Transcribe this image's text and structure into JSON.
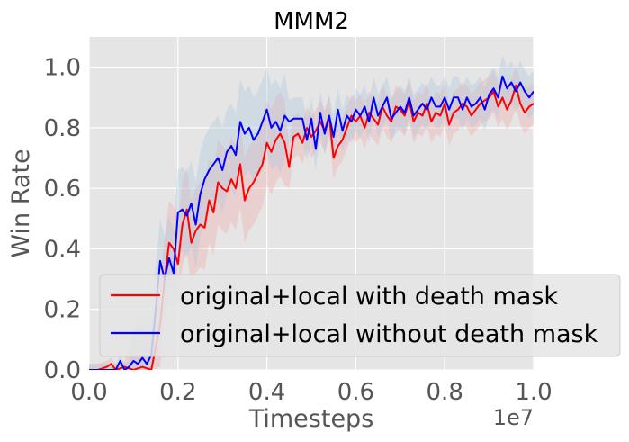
{
  "chart_data": {
    "type": "line",
    "title": "MMM2",
    "xlabel": "Timesteps",
    "ylabel": "Win Rate",
    "x_offset_label": "1e7",
    "xlim": [
      0.0,
      1.0
    ],
    "ylim": [
      0.0,
      1.1
    ],
    "xticks": [
      "0.0",
      "0.2",
      "0.4",
      "0.6",
      "0.8",
      "1.0"
    ],
    "yticks": [
      "0.0",
      "0.2",
      "0.4",
      "0.6",
      "0.8",
      "1.0"
    ],
    "grid": true,
    "legend_position": "lower-right",
    "series": [
      {
        "name": "original+local with death mask",
        "color": "#ff0000",
        "band_color": "#f4a6a6",
        "x": [
          0.0,
          0.02,
          0.04,
          0.05,
          0.06,
          0.08,
          0.1,
          0.12,
          0.14,
          0.16,
          0.17,
          0.18,
          0.19,
          0.2,
          0.21,
          0.22,
          0.23,
          0.24,
          0.25,
          0.26,
          0.27,
          0.28,
          0.29,
          0.3,
          0.31,
          0.32,
          0.33,
          0.34,
          0.35,
          0.36,
          0.37,
          0.38,
          0.39,
          0.4,
          0.41,
          0.42,
          0.43,
          0.44,
          0.45,
          0.46,
          0.47,
          0.48,
          0.49,
          0.5,
          0.51,
          0.52,
          0.53,
          0.54,
          0.55,
          0.56,
          0.57,
          0.58,
          0.59,
          0.6,
          0.61,
          0.62,
          0.63,
          0.64,
          0.65,
          0.66,
          0.67,
          0.68,
          0.69,
          0.7,
          0.71,
          0.72,
          0.73,
          0.74,
          0.75,
          0.76,
          0.77,
          0.78,
          0.79,
          0.8,
          0.81,
          0.82,
          0.83,
          0.84,
          0.85,
          0.86,
          0.87,
          0.88,
          0.89,
          0.9,
          0.91,
          0.92,
          0.93,
          0.94,
          0.95,
          0.96,
          0.97,
          0.98,
          0.99,
          1.0
        ],
        "y": [
          0.0,
          0.0,
          0.01,
          0.02,
          0.0,
          0.01,
          0.0,
          0.01,
          0.0,
          0.15,
          0.3,
          0.42,
          0.4,
          0.35,
          0.48,
          0.53,
          0.42,
          0.46,
          0.48,
          0.47,
          0.56,
          0.52,
          0.62,
          0.6,
          0.59,
          0.63,
          0.6,
          0.68,
          0.56,
          0.6,
          0.62,
          0.65,
          0.68,
          0.75,
          0.72,
          0.76,
          0.78,
          0.75,
          0.67,
          0.77,
          0.78,
          0.75,
          0.8,
          0.77,
          0.79,
          0.82,
          0.79,
          0.84,
          0.7,
          0.74,
          0.76,
          0.8,
          0.84,
          0.82,
          0.84,
          0.8,
          0.85,
          0.83,
          0.81,
          0.87,
          0.84,
          0.82,
          0.87,
          0.86,
          0.84,
          0.89,
          0.82,
          0.85,
          0.84,
          0.88,
          0.82,
          0.85,
          0.84,
          0.88,
          0.81,
          0.85,
          0.86,
          0.88,
          0.87,
          0.84,
          0.86,
          0.88,
          0.89,
          0.9,
          0.92,
          0.87,
          0.9,
          0.86,
          0.89,
          0.94,
          0.88,
          0.85,
          0.87,
          0.88
        ]
      },
      {
        "name": "original+local without death mask",
        "color": "#0000ff",
        "band_color": "#a9c6e0",
        "x": [
          0.0,
          0.02,
          0.04,
          0.06,
          0.07,
          0.08,
          0.09,
          0.1,
          0.11,
          0.12,
          0.13,
          0.14,
          0.15,
          0.16,
          0.17,
          0.18,
          0.19,
          0.2,
          0.21,
          0.22,
          0.23,
          0.24,
          0.25,
          0.26,
          0.27,
          0.28,
          0.29,
          0.3,
          0.31,
          0.32,
          0.33,
          0.34,
          0.35,
          0.36,
          0.37,
          0.38,
          0.39,
          0.4,
          0.41,
          0.42,
          0.43,
          0.44,
          0.45,
          0.46,
          0.47,
          0.48,
          0.49,
          0.5,
          0.51,
          0.52,
          0.53,
          0.54,
          0.55,
          0.56,
          0.57,
          0.58,
          0.59,
          0.6,
          0.61,
          0.62,
          0.63,
          0.64,
          0.65,
          0.66,
          0.67,
          0.68,
          0.69,
          0.7,
          0.71,
          0.72,
          0.73,
          0.74,
          0.75,
          0.76,
          0.77,
          0.78,
          0.79,
          0.8,
          0.81,
          0.82,
          0.83,
          0.84,
          0.85,
          0.86,
          0.87,
          0.88,
          0.89,
          0.9,
          0.91,
          0.92,
          0.93,
          0.94,
          0.95,
          0.96,
          0.97,
          0.98,
          0.99,
          1.0
        ],
        "y": [
          0.0,
          0.0,
          0.0,
          0.0,
          0.03,
          0.0,
          0.01,
          0.03,
          0.02,
          0.04,
          0.02,
          0.05,
          0.2,
          0.36,
          0.3,
          0.37,
          0.32,
          0.52,
          0.53,
          0.51,
          0.55,
          0.48,
          0.58,
          0.63,
          0.66,
          0.68,
          0.7,
          0.66,
          0.72,
          0.74,
          0.71,
          0.82,
          0.78,
          0.8,
          0.76,
          0.78,
          0.82,
          0.86,
          0.8,
          0.82,
          0.79,
          0.84,
          0.82,
          0.83,
          0.83,
          0.83,
          0.76,
          0.83,
          0.73,
          0.85,
          0.78,
          0.84,
          0.77,
          0.86,
          0.79,
          0.84,
          0.82,
          0.86,
          0.84,
          0.87,
          0.82,
          0.9,
          0.84,
          0.87,
          0.9,
          0.83,
          0.85,
          0.87,
          0.85,
          0.9,
          0.84,
          0.86,
          0.88,
          0.86,
          0.9,
          0.87,
          0.87,
          0.9,
          0.86,
          0.9,
          0.9,
          0.86,
          0.9,
          0.87,
          0.88,
          0.9,
          0.86,
          0.91,
          0.93,
          0.9,
          0.97,
          0.93,
          0.95,
          0.92,
          0.95,
          0.92,
          0.9,
          0.92
        ]
      }
    ]
  }
}
